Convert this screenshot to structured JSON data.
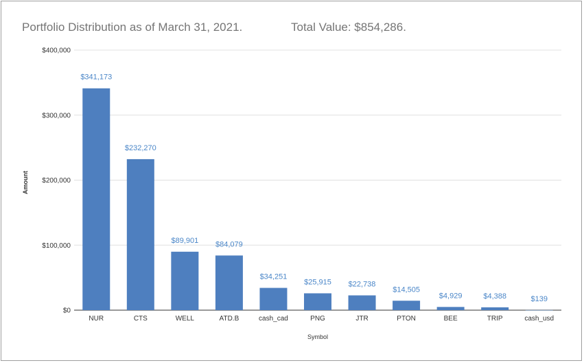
{
  "chart_data": {
    "type": "bar",
    "title": "Portfolio Distribution as of March 31, 2021.",
    "subtitle": "Total Value: $854,286.",
    "xlabel": "Symbol",
    "ylabel": "Amount",
    "ylim": [
      0,
      400000
    ],
    "yticks": [
      0,
      100000,
      200000,
      300000,
      400000
    ],
    "ytick_labels": [
      "$0",
      "$100,000",
      "$200,000",
      "$300,000",
      "$400,000"
    ],
    "categories": [
      "NUR",
      "CTS",
      "WELL",
      "ATD.B",
      "cash_cad",
      "PNG",
      "JTR",
      "PTON",
      "BEE",
      "TRIP",
      "cash_usd"
    ],
    "values": [
      341173,
      232270,
      89901,
      84079,
      34251,
      25915,
      22738,
      14505,
      4929,
      4388,
      139
    ],
    "data_labels": [
      "$341,173",
      "$232,270",
      "$89,901",
      "$84,079",
      "$34,251",
      "$25,915",
      "$22,738",
      "$14,505",
      "$4,929",
      "$4,388",
      "$139"
    ],
    "grid": true,
    "legend": "none",
    "bar_color": "#4e7fbf",
    "label_color": "#4a86c8"
  }
}
